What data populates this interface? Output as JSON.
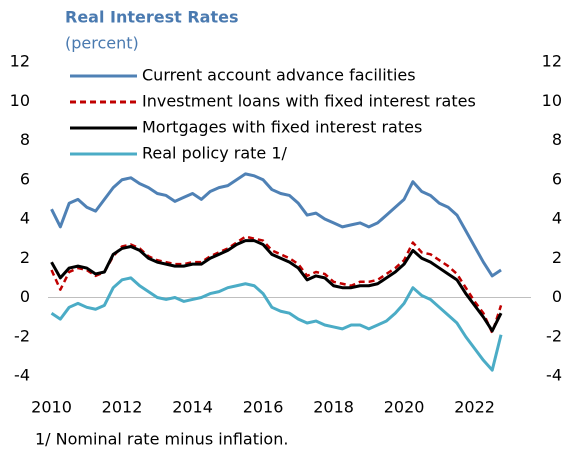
{
  "chart_data": {
    "type": "line",
    "title": "Real Interest Rates",
    "subtitle": "(percent)",
    "footnote": "1/ Nominal rate minus inflation.",
    "x": [
      2010,
      2010.25,
      2010.5,
      2010.75,
      2011,
      2011.25,
      2011.5,
      2011.75,
      2012,
      2012.25,
      2012.5,
      2012.75,
      2013,
      2013.25,
      2013.5,
      2013.75,
      2014,
      2014.25,
      2014.5,
      2014.75,
      2015,
      2015.25,
      2015.5,
      2015.75,
      2016,
      2016.25,
      2016.5,
      2016.75,
      2017,
      2017.25,
      2017.5,
      2017.75,
      2018,
      2018.25,
      2018.5,
      2018.75,
      2019,
      2019.25,
      2019.5,
      2019.75,
      2020,
      2020.25,
      2020.5,
      2020.75,
      2021,
      2021.25,
      2021.5,
      2021.75,
      2022,
      2022.25,
      2022.5,
      2022.75
    ],
    "series": [
      {
        "name": "Current account advance facilities",
        "color": "#4f81b5",
        "dash": false,
        "values": [
          4.5,
          3.6,
          4.8,
          5.0,
          4.6,
          4.4,
          5.0,
          5.6,
          6.0,
          6.1,
          5.8,
          5.6,
          5.3,
          5.2,
          4.9,
          5.1,
          5.3,
          5.0,
          5.4,
          5.6,
          5.7,
          6.0,
          6.3,
          6.2,
          6.0,
          5.5,
          5.3,
          5.2,
          4.8,
          4.2,
          4.3,
          4.0,
          3.8,
          3.6,
          3.7,
          3.8,
          3.6,
          3.8,
          4.2,
          4.6,
          5.0,
          5.9,
          5.4,
          5.2,
          4.8,
          4.6,
          4.2,
          3.4,
          2.6,
          1.8,
          1.1,
          1.4
        ]
      },
      {
        "name": "Investment loans with fixed interest rates",
        "color": "#c00000",
        "dash": true,
        "values": [
          1.4,
          0.4,
          1.3,
          1.5,
          1.4,
          1.1,
          1.3,
          2.1,
          2.6,
          2.7,
          2.5,
          2.1,
          1.9,
          1.8,
          1.7,
          1.7,
          1.8,
          1.8,
          2.1,
          2.3,
          2.5,
          2.8,
          3.1,
          3.0,
          2.9,
          2.4,
          2.2,
          2.0,
          1.7,
          1.1,
          1.3,
          1.2,
          0.8,
          0.7,
          0.6,
          0.8,
          0.8,
          0.9,
          1.2,
          1.5,
          1.9,
          2.8,
          2.3,
          2.2,
          1.9,
          1.6,
          1.2,
          0.5,
          -0.2,
          -0.8,
          -1.8,
          -0.4
        ]
      },
      {
        "name": "Mortgages with fixed interest rates",
        "color": "#000000",
        "dash": false,
        "values": [
          1.8,
          1.0,
          1.5,
          1.6,
          1.5,
          1.2,
          1.3,
          2.2,
          2.5,
          2.6,
          2.4,
          2.0,
          1.8,
          1.7,
          1.6,
          1.6,
          1.7,
          1.7,
          2.0,
          2.2,
          2.4,
          2.7,
          2.9,
          2.9,
          2.7,
          2.2,
          2.0,
          1.8,
          1.5,
          0.9,
          1.1,
          1.0,
          0.6,
          0.5,
          0.5,
          0.6,
          0.6,
          0.7,
          1.0,
          1.3,
          1.7,
          2.4,
          2.0,
          1.8,
          1.5,
          1.2,
          0.9,
          0.2,
          -0.4,
          -1.0,
          -1.7,
          -0.8
        ]
      },
      {
        "name": "Real policy rate 1/",
        "color": "#4bacc6",
        "dash": false,
        "values": [
          -0.8,
          -1.1,
          -0.5,
          -0.3,
          -0.5,
          -0.6,
          -0.4,
          0.5,
          0.9,
          1.0,
          0.6,
          0.3,
          0.0,
          -0.1,
          0.0,
          -0.2,
          -0.1,
          0.0,
          0.2,
          0.3,
          0.5,
          0.6,
          0.7,
          0.6,
          0.2,
          -0.5,
          -0.7,
          -0.8,
          -1.1,
          -1.3,
          -1.2,
          -1.4,
          -1.5,
          -1.6,
          -1.4,
          -1.4,
          -1.6,
          -1.4,
          -1.2,
          -0.8,
          -0.3,
          0.5,
          0.1,
          -0.1,
          -0.5,
          -0.9,
          -1.3,
          -2.0,
          -2.6,
          -3.2,
          -3.7,
          -1.9
        ]
      }
    ],
    "xlim": [
      2009.9,
      2023.6
    ],
    "xticks": [
      2010,
      2012,
      2014,
      2016,
      2018,
      2020,
      2022
    ],
    "ylim": [
      -4,
      12
    ],
    "yticks": [
      -4,
      -2,
      0,
      2,
      4,
      6,
      8,
      10,
      12
    ],
    "y2lim": [
      -4,
      12
    ],
    "y2ticks": [
      -4,
      -2,
      0,
      2,
      4,
      6,
      8,
      10,
      12
    ],
    "legend": "upper left",
    "grid": false
  }
}
